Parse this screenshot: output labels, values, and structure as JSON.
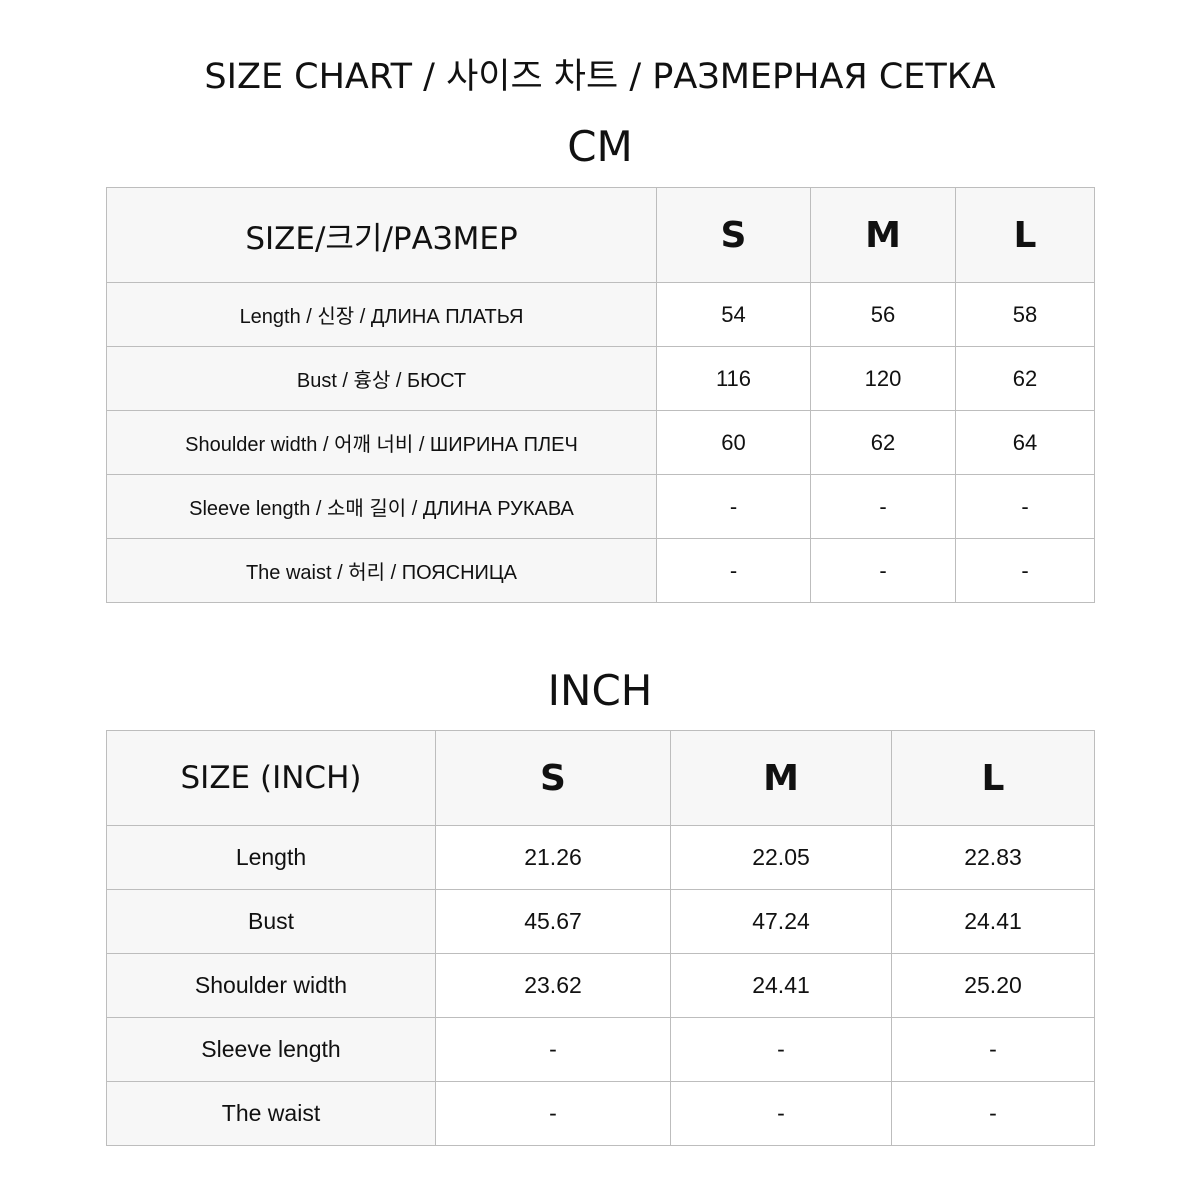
{
  "title": "SIZE CHART / 사이즈 차트 / РАЗМЕРНАЯ СЕТКА",
  "cm": {
    "unit_label": "CM",
    "header": [
      "SIZE/크기/РАЗМЕР",
      "S",
      "M",
      "L"
    ],
    "rows": [
      {
        "label": "Length  / 신장  /  ДЛИНА ПЛАТЬЯ",
        "values": [
          "54",
          "56",
          "58"
        ]
      },
      {
        "label": "Bust  / 흉상  /  БЮСТ",
        "values": [
          "116",
          "120",
          "62"
        ]
      },
      {
        "label": "Shoulder width  /  어깨  너비  /  ШИРИНА ПЛЕЧ",
        "values": [
          "60",
          "62",
          "64"
        ]
      },
      {
        "label": "Sleeve length / 소매  길이  /  ДЛИНА РУКАВА",
        "values": [
          "-",
          "-",
          "-"
        ]
      },
      {
        "label": "The waist  / 허리  /  ПОЯСНИЦА",
        "values": [
          "-",
          "-",
          "-"
        ]
      }
    ]
  },
  "inch": {
    "unit_label": "INCH",
    "header": [
      "SIZE (INCH)",
      "S",
      "M",
      "L"
    ],
    "rows": [
      {
        "label": "Length",
        "values": [
          "21.26",
          "22.05",
          "22.83"
        ]
      },
      {
        "label": "Bust",
        "values": [
          "45.67",
          "47.24",
          "24.41"
        ]
      },
      {
        "label": "Shoulder width",
        "values": [
          "23.62",
          "24.41",
          "25.20"
        ]
      },
      {
        "label": "Sleeve length",
        "values": [
          "-",
          "-",
          "-"
        ]
      },
      {
        "label": "The waist",
        "values": [
          "-",
          "-",
          "-"
        ]
      }
    ]
  }
}
